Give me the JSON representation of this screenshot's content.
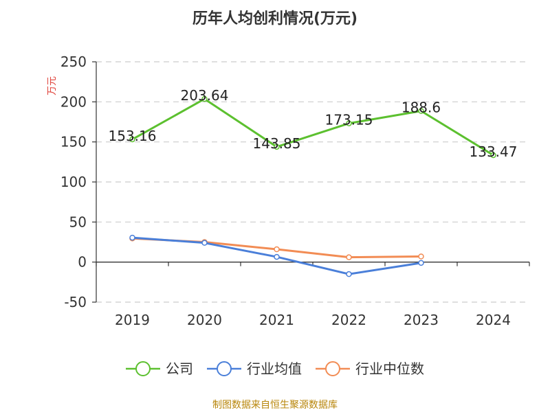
{
  "chart_data": {
    "type": "line",
    "title": "历年人均创利情况(万元)",
    "ylabel": "万元",
    "xlabel": "",
    "categories": [
      "2019",
      "2020",
      "2021",
      "2022",
      "2023",
      "2024"
    ],
    "ylim": [
      -50,
      250
    ],
    "yticks": [
      -50,
      0,
      50,
      100,
      150,
      200,
      250
    ],
    "grid": true,
    "legend_position": "bottom",
    "series": [
      {
        "name": "公司",
        "color": "#5cc02f",
        "values": [
          153.16,
          203.64,
          143.85,
          173.15,
          188.6,
          133.47
        ],
        "labels": [
          "153.16",
          "203.64",
          "143.85",
          "173.15",
          "188.6",
          "133.47"
        ]
      },
      {
        "name": "行业均值",
        "color": "#4a7fd9",
        "values": [
          30.5,
          24.0,
          6.5,
          -15.0,
          -1.0,
          null
        ]
      },
      {
        "name": "行业中位数",
        "color": "#f28c54",
        "values": [
          29.5,
          25.0,
          16.0,
          6.0,
          7.0,
          null
        ]
      }
    ]
  },
  "source_note": "制图数据来自恒生聚源数据库"
}
